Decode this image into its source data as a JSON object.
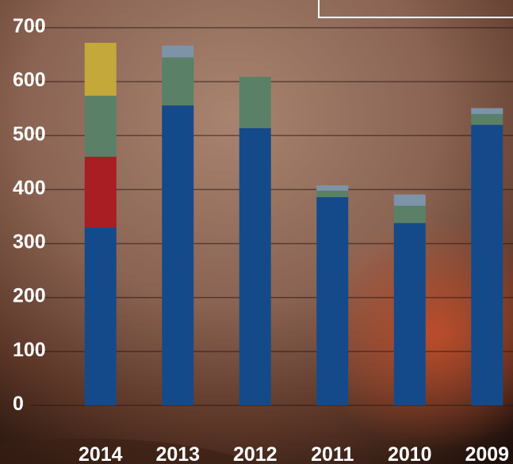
{
  "chart_data": {
    "type": "stacked-bar",
    "categories": [
      "2014",
      "2013",
      "2012",
      "2011",
      "2010",
      "2009"
    ],
    "series": [
      {
        "color": "#154a8a",
        "values": [
          330,
          556,
          514,
          386,
          338,
          520
        ]
      },
      {
        "color": "#a81e22",
        "values": [
          131,
          0,
          0,
          0,
          0,
          0
        ]
      },
      {
        "color": "#5a8068",
        "values": [
          113,
          89,
          95,
          12,
          32,
          20
        ]
      },
      {
        "color": "#c4a83a",
        "values": [
          98,
          0,
          0,
          0,
          0,
          0
        ]
      },
      {
        "color": "#7d93a8",
        "values": [
          0,
          22,
          0,
          10,
          21,
          11
        ]
      }
    ],
    "ylim": [
      0,
      700
    ],
    "yticks": [
      0,
      100,
      200,
      300,
      400,
      500,
      600,
      700
    ],
    "grid": true
  }
}
